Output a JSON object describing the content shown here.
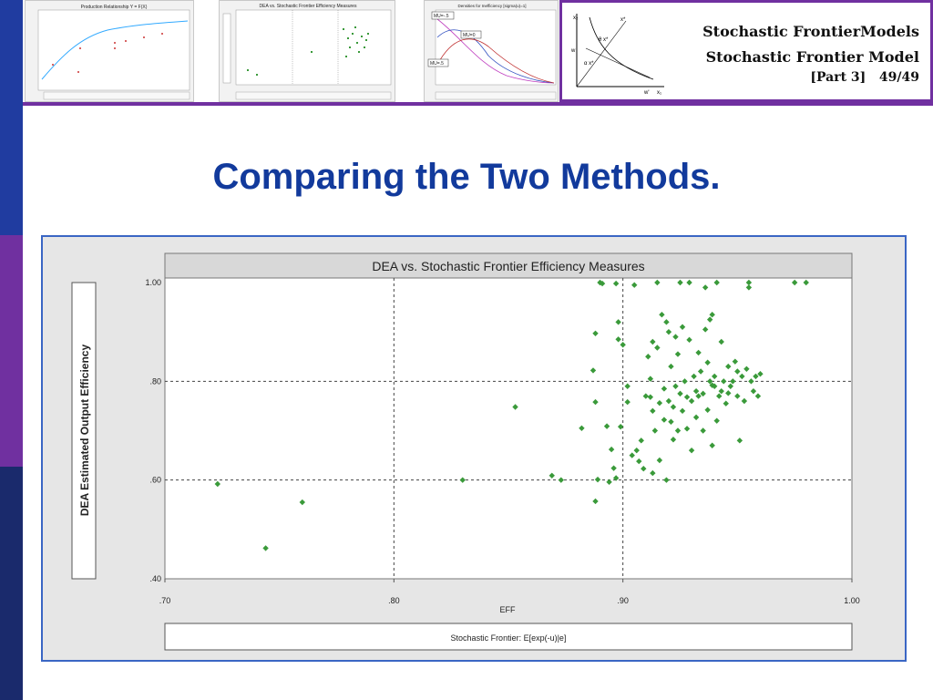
{
  "header": {
    "title_line1": "Stochastic FrontierModels",
    "title_line2": "Stochastic Frontier Model",
    "title_part": "[Part 3]",
    "title_page": "49/49",
    "thumb1_title": "Production Relationship Y = F(X)",
    "thumb2_title": "DEA vs. Stochastic Frontier Efficiency Measures",
    "thumb3_title": "Densities for Inefficiency [sigma(u)=1]",
    "thumb3_labels": [
      "MU=-.5",
      "MU=0",
      "MU=.5"
    ],
    "diagram_labels": {
      "x2": "x₂",
      "x1": "x₁",
      "xstar": "x*",
      "theta": "θ x*",
      "alpha": "α x*",
      "w": "w",
      "wprime": "w'"
    }
  },
  "slide": {
    "title": "Comparing the Two Methods."
  },
  "colors": {
    "accent_blue": "#123a9c",
    "accent_purple": "#7030a0",
    "marker": "#3a9a3a"
  },
  "chart_data": {
    "type": "scatter",
    "title": "DEA vs. Stochastic Frontier Efficiency Measures",
    "xlabel": "EFF",
    "ylabel": "DEA Estimated Output Efficiency",
    "footer_label": "Stochastic Frontier: E[exp(-u)|e]",
    "xlim": [
      0.7,
      1.0
    ],
    "ylim": [
      0.4,
      1.0
    ],
    "x_ticks": [
      ".70",
      ".80",
      ".90",
      "1.00"
    ],
    "y_ticks": [
      ".40",
      ".60",
      ".80",
      "1.00"
    ],
    "x_tick_values": [
      0.7,
      0.8,
      0.9,
      1.0
    ],
    "y_tick_values": [
      0.4,
      0.6,
      0.8,
      1.0
    ],
    "grid": "dashed at .80 and .90 (x), .60 and .80 (y)",
    "marker": "green diamond",
    "points": [
      [
        0.723,
        0.592
      ],
      [
        0.744,
        0.462
      ],
      [
        0.76,
        0.555
      ],
      [
        0.83,
        0.6
      ],
      [
        0.853,
        0.748
      ],
      [
        0.869,
        0.609
      ],
      [
        0.873,
        0.6
      ],
      [
        0.882,
        0.705
      ],
      [
        0.887,
        0.822
      ],
      [
        0.888,
        0.897
      ],
      [
        0.888,
        0.758
      ],
      [
        0.888,
        0.557
      ],
      [
        0.889,
        0.601
      ],
      [
        0.89,
        1.0
      ],
      [
        0.891,
        0.998
      ],
      [
        0.893,
        0.709
      ],
      [
        0.894,
        0.596
      ],
      [
        0.895,
        0.662
      ],
      [
        0.896,
        0.624
      ],
      [
        0.897,
        0.604
      ],
      [
        0.897,
        0.998
      ],
      [
        0.898,
        0.92
      ],
      [
        0.898,
        0.885
      ],
      [
        0.899,
        0.708
      ],
      [
        0.9,
        0.874
      ],
      [
        0.902,
        0.79
      ],
      [
        0.902,
        0.758
      ],
      [
        0.904,
        0.65
      ],
      [
        0.905,
        0.995
      ],
      [
        0.906,
        0.66
      ],
      [
        0.907,
        0.638
      ],
      [
        0.908,
        0.68
      ],
      [
        0.909,
        0.623
      ],
      [
        0.91,
        0.77
      ],
      [
        0.911,
        0.85
      ],
      [
        0.912,
        0.805
      ],
      [
        0.912,
        0.768
      ],
      [
        0.913,
        0.88
      ],
      [
        0.913,
        0.74
      ],
      [
        0.913,
        0.614
      ],
      [
        0.914,
        0.7
      ],
      [
        0.915,
        0.868
      ],
      [
        0.915,
        1.0
      ],
      [
        0.916,
        0.756
      ],
      [
        0.916,
        0.64
      ],
      [
        0.917,
        0.935
      ],
      [
        0.918,
        0.785
      ],
      [
        0.918,
        0.722
      ],
      [
        0.919,
        0.92
      ],
      [
        0.919,
        0.6
      ],
      [
        0.92,
        0.9
      ],
      [
        0.92,
        0.76
      ],
      [
        0.921,
        0.83
      ],
      [
        0.921,
        0.718
      ],
      [
        0.922,
        0.748
      ],
      [
        0.922,
        0.682
      ],
      [
        0.923,
        0.89
      ],
      [
        0.923,
        0.79
      ],
      [
        0.924,
        0.855
      ],
      [
        0.924,
        0.7
      ],
      [
        0.925,
        0.775
      ],
      [
        0.925,
        1.0
      ],
      [
        0.926,
        0.91
      ],
      [
        0.926,
        0.74
      ],
      [
        0.927,
        0.8
      ],
      [
        0.928,
        0.768
      ],
      [
        0.928,
        0.704
      ],
      [
        0.929,
        0.884
      ],
      [
        0.929,
        1.0
      ],
      [
        0.93,
        0.76
      ],
      [
        0.93,
        0.66
      ],
      [
        0.931,
        0.81
      ],
      [
        0.932,
        0.78
      ],
      [
        0.932,
        0.727
      ],
      [
        0.933,
        0.858
      ],
      [
        0.933,
        0.77
      ],
      [
        0.934,
        0.82
      ],
      [
        0.935,
        0.775
      ],
      [
        0.935,
        0.7
      ],
      [
        0.936,
        0.905
      ],
      [
        0.936,
        0.99
      ],
      [
        0.937,
        0.838
      ],
      [
        0.937,
        0.742
      ],
      [
        0.938,
        0.925
      ],
      [
        0.938,
        0.8
      ],
      [
        0.939,
        0.935
      ],
      [
        0.939,
        0.792
      ],
      [
        0.939,
        0.67
      ],
      [
        0.94,
        0.81
      ],
      [
        0.94,
        0.79
      ],
      [
        0.941,
        0.72
      ],
      [
        0.941,
        1.0
      ],
      [
        0.942,
        0.77
      ],
      [
        0.943,
        0.78
      ],
      [
        0.943,
        0.88
      ],
      [
        0.944,
        0.8
      ],
      [
        0.945,
        0.755
      ],
      [
        0.946,
        0.83
      ],
      [
        0.946,
        0.776
      ],
      [
        0.947,
        0.79
      ],
      [
        0.948,
        0.8
      ],
      [
        0.949,
        0.84
      ],
      [
        0.95,
        0.82
      ],
      [
        0.95,
        0.77
      ],
      [
        0.951,
        0.68
      ],
      [
        0.952,
        0.81
      ],
      [
        0.953,
        0.76
      ],
      [
        0.954,
        0.825
      ],
      [
        0.955,
        1.0
      ],
      [
        0.955,
        0.99
      ],
      [
        0.956,
        0.8
      ],
      [
        0.957,
        0.78
      ],
      [
        0.958,
        0.81
      ],
      [
        0.959,
        0.77
      ],
      [
        0.96,
        0.815
      ],
      [
        0.975,
        1.0
      ],
      [
        0.98,
        1.0
      ]
    ]
  }
}
